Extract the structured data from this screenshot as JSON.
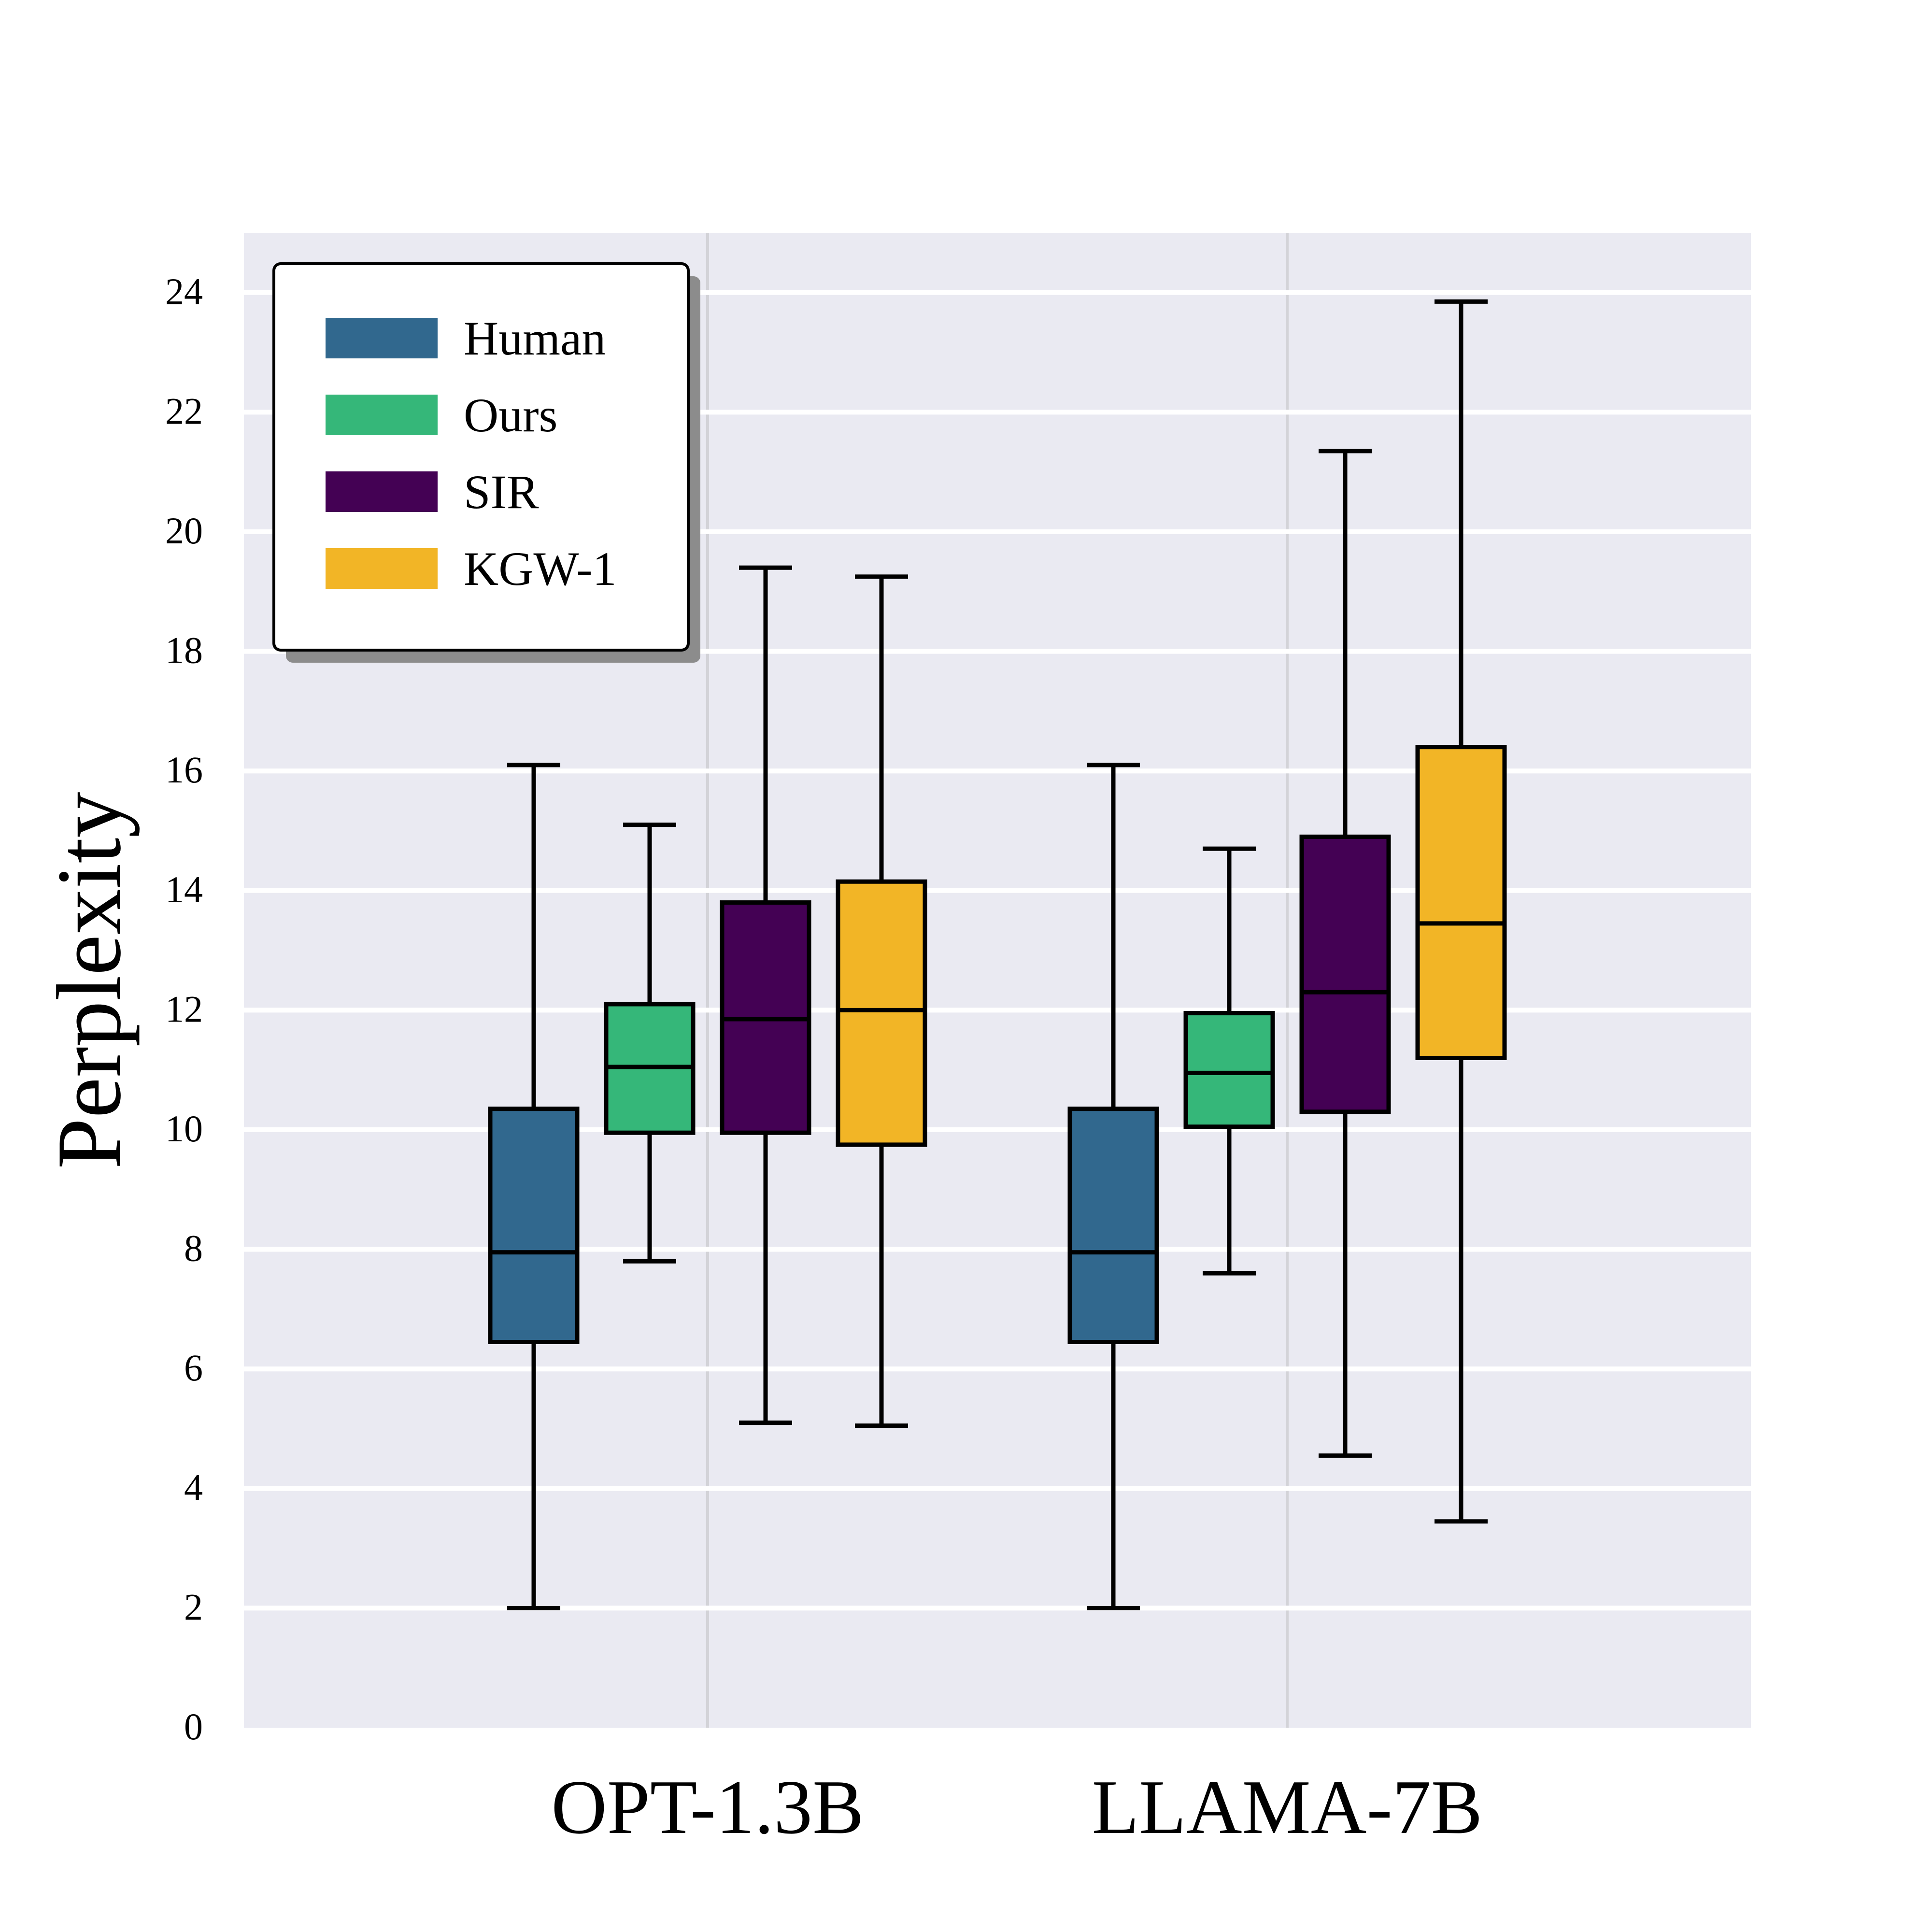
{
  "chart_data": {
    "type": "box",
    "title": "",
    "xlabel": "",
    "ylabel": "Perplexity",
    "ylim": [
      0,
      25
    ],
    "yticks": [
      "0",
      "2",
      "4",
      "6",
      "8",
      "10",
      "12",
      "14",
      "16",
      "18",
      "20",
      "22",
      "24"
    ],
    "categories": [
      "OPT-1.3B",
      "LLAMA-7B"
    ],
    "legend_position": "top-left",
    "grid": true,
    "series": [
      {
        "name": "Human",
        "color": "#31688e",
        "boxes": [
          {
            "category": "OPT-1.3B",
            "whisker_low": 2.0,
            "q1": 6.45,
            "median": 7.95,
            "q3": 10.35,
            "whisker_high": 16.1
          },
          {
            "category": "LLAMA-7B",
            "whisker_low": 2.0,
            "q1": 6.45,
            "median": 7.95,
            "q3": 10.35,
            "whisker_high": 16.1
          }
        ]
      },
      {
        "name": "Ours",
        "color": "#35b779",
        "boxes": [
          {
            "category": "OPT-1.3B",
            "whisker_low": 7.8,
            "q1": 9.95,
            "median": 11.05,
            "q3": 12.1,
            "whisker_high": 15.1
          },
          {
            "category": "LLAMA-7B",
            "whisker_low": 7.6,
            "q1": 10.05,
            "median": 10.95,
            "q3": 11.95,
            "whisker_high": 14.7
          }
        ]
      },
      {
        "name": "SIR",
        "color": "#440154",
        "boxes": [
          {
            "category": "OPT-1.3B",
            "whisker_low": 5.1,
            "q1": 9.95,
            "median": 11.85,
            "q3": 13.8,
            "whisker_high": 19.4
          },
          {
            "category": "LLAMA-7B",
            "whisker_low": 4.55,
            "q1": 10.3,
            "median": 12.3,
            "q3": 14.9,
            "whisker_high": 21.35
          }
        ]
      },
      {
        "name": "KGW-1",
        "color": "#f2b526",
        "boxes": [
          {
            "category": "OPT-1.3B",
            "whisker_low": 5.05,
            "q1": 9.75,
            "median": 12.0,
            "q3": 14.15,
            "whisker_high": 19.25
          },
          {
            "category": "LLAMA-7B",
            "whisker_low": 3.45,
            "q1": 11.2,
            "median": 13.45,
            "q3": 16.4,
            "whisker_high": 23.85
          }
        ]
      }
    ]
  }
}
